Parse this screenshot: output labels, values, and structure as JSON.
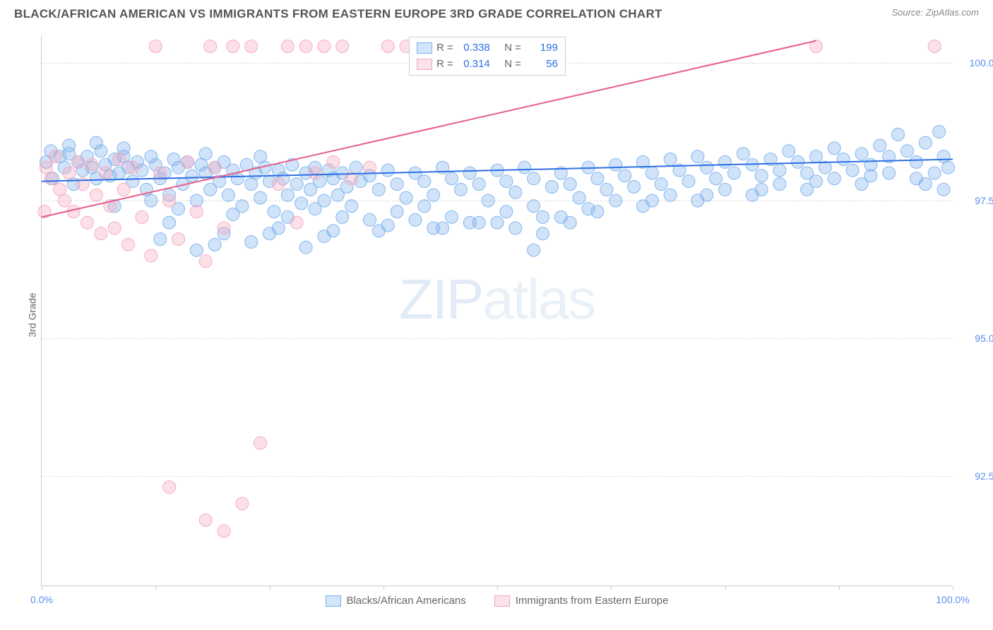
{
  "title": "BLACK/AFRICAN AMERICAN VS IMMIGRANTS FROM EASTERN EUROPE 3RD GRADE CORRELATION CHART",
  "source_prefix": "Source: ",
  "source_link": "ZipAtlas.com",
  "y_axis_label": "3rd Grade",
  "watermark_bold": "ZIP",
  "watermark_thin": "atlas",
  "chart": {
    "type": "scatter-with-regression",
    "xlim": [
      0,
      100
    ],
    "ylim": [
      90.5,
      100.5
    ],
    "y_ticks": [
      92.5,
      95.0,
      97.5,
      100.0
    ],
    "y_tick_labels": [
      "92.5%",
      "95.0%",
      "97.5%",
      "100.0%"
    ],
    "x_ticks": [
      0,
      12.5,
      25,
      37.5,
      50,
      62.5,
      75,
      87.5,
      100
    ],
    "x_tick_labels": {
      "0": "0.0%",
      "100": "100.0%"
    },
    "background_color": "#ffffff",
    "grid_color": "#dddddd",
    "axis_color": "#cccccc",
    "marker_radius": 9,
    "marker_fill_opacity": 0.35,
    "marker_stroke_opacity": 0.9,
    "line_width": 2,
    "series": [
      {
        "name": "Blacks/African Americans",
        "color": "#7ab0ec",
        "line_color": "#2d6fe4",
        "R": "0.338",
        "N": "199",
        "trend": {
          "x1": 0,
          "y1": 97.85,
          "x2": 100,
          "y2": 98.25
        },
        "points": [
          [
            0.5,
            98.2
          ],
          [
            1,
            98.4
          ],
          [
            1.2,
            97.9
          ],
          [
            2,
            98.3
          ],
          [
            2.5,
            98.1
          ],
          [
            3,
            98.35
          ],
          [
            3.5,
            97.8
          ],
          [
            4,
            98.2
          ],
          [
            4.5,
            98.05
          ],
          [
            5,
            98.3
          ],
          [
            5.5,
            98.1
          ],
          [
            6,
            97.9
          ],
          [
            6.5,
            98.4
          ],
          [
            7,
            98.15
          ],
          [
            7.5,
            97.95
          ],
          [
            8,
            98.25
          ],
          [
            8.5,
            98.0
          ],
          [
            9,
            98.3
          ],
          [
            9.5,
            98.1
          ],
          [
            10,
            97.85
          ],
          [
            10.5,
            98.2
          ],
          [
            11,
            98.05
          ],
          [
            11.5,
            97.7
          ],
          [
            12,
            98.3
          ],
          [
            12.5,
            98.15
          ],
          [
            13,
            97.9
          ],
          [
            13.5,
            98.0
          ],
          [
            14,
            97.6
          ],
          [
            14.5,
            98.25
          ],
          [
            15,
            98.1
          ],
          [
            15.5,
            97.8
          ],
          [
            16,
            98.2
          ],
          [
            16.5,
            97.95
          ],
          [
            17,
            97.5
          ],
          [
            17.5,
            98.15
          ],
          [
            18,
            98.0
          ],
          [
            18.5,
            97.7
          ],
          [
            19,
            98.1
          ],
          [
            19.5,
            97.85
          ],
          [
            20,
            98.2
          ],
          [
            20.5,
            97.6
          ],
          [
            21,
            98.05
          ],
          [
            21.5,
            97.9
          ],
          [
            22,
            97.4
          ],
          [
            22.5,
            98.15
          ],
          [
            23,
            97.8
          ],
          [
            23.5,
            98.0
          ],
          [
            24,
            97.55
          ],
          [
            24.5,
            98.1
          ],
          [
            25,
            97.85
          ],
          [
            25.5,
            97.3
          ],
          [
            26,
            98.05
          ],
          [
            26.5,
            97.9
          ],
          [
            27,
            97.6
          ],
          [
            27.5,
            98.15
          ],
          [
            28,
            97.8
          ],
          [
            28.5,
            97.45
          ],
          [
            29,
            98.0
          ],
          [
            29.5,
            97.7
          ],
          [
            30,
            98.1
          ],
          [
            30.5,
            97.85
          ],
          [
            31,
            97.5
          ],
          [
            31.5,
            98.05
          ],
          [
            32,
            97.9
          ],
          [
            32.5,
            97.6
          ],
          [
            33,
            98.0
          ],
          [
            33.5,
            97.75
          ],
          [
            34,
            97.4
          ],
          [
            34.5,
            98.1
          ],
          [
            35,
            97.85
          ],
          [
            36,
            97.95
          ],
          [
            37,
            97.7
          ],
          [
            38,
            98.05
          ],
          [
            39,
            97.8
          ],
          [
            40,
            97.55
          ],
          [
            41,
            98.0
          ],
          [
            42,
            97.85
          ],
          [
            43,
            97.6
          ],
          [
            44,
            98.1
          ],
          [
            45,
            97.9
          ],
          [
            46,
            97.7
          ],
          [
            47,
            98.0
          ],
          [
            48,
            97.8
          ],
          [
            49,
            97.5
          ],
          [
            50,
            98.05
          ],
          [
            51,
            97.85
          ],
          [
            52,
            97.65
          ],
          [
            53,
            98.1
          ],
          [
            54,
            97.9
          ],
          [
            55,
            96.9
          ],
          [
            56,
            97.75
          ],
          [
            57,
            98.0
          ],
          [
            58,
            97.8
          ],
          [
            59,
            97.55
          ],
          [
            60,
            98.1
          ],
          [
            61,
            97.9
          ],
          [
            62,
            97.7
          ],
          [
            63,
            98.15
          ],
          [
            64,
            97.95
          ],
          [
            65,
            97.75
          ],
          [
            66,
            98.2
          ],
          [
            67,
            98.0
          ],
          [
            68,
            97.8
          ],
          [
            69,
            98.25
          ],
          [
            70,
            98.05
          ],
          [
            71,
            97.85
          ],
          [
            72,
            98.3
          ],
          [
            73,
            98.1
          ],
          [
            74,
            97.9
          ],
          [
            75,
            98.2
          ],
          [
            76,
            98.0
          ],
          [
            77,
            98.35
          ],
          [
            78,
            98.15
          ],
          [
            79,
            97.95
          ],
          [
            80,
            98.25
          ],
          [
            81,
            98.05
          ],
          [
            82,
            98.4
          ],
          [
            83,
            98.2
          ],
          [
            84,
            98.0
          ],
          [
            85,
            98.3
          ],
          [
            86,
            98.1
          ],
          [
            87,
            98.45
          ],
          [
            88,
            98.25
          ],
          [
            89,
            98.05
          ],
          [
            90,
            98.35
          ],
          [
            91,
            98.15
          ],
          [
            92,
            98.5
          ],
          [
            93,
            98.3
          ],
          [
            94,
            98.7
          ],
          [
            95,
            98.4
          ],
          [
            96,
            98.2
          ],
          [
            97,
            98.55
          ],
          [
            98,
            98.0
          ],
          [
            98.5,
            98.75
          ],
          [
            99,
            98.3
          ],
          [
            99.5,
            98.1
          ],
          [
            3,
            98.5
          ],
          [
            6,
            98.55
          ],
          [
            9,
            98.45
          ],
          [
            12,
            97.5
          ],
          [
            15,
            97.35
          ],
          [
            18,
            98.35
          ],
          [
            21,
            97.25
          ],
          [
            24,
            98.3
          ],
          [
            27,
            97.2
          ],
          [
            30,
            97.35
          ],
          [
            33,
            97.2
          ],
          [
            36,
            97.15
          ],
          [
            39,
            97.3
          ],
          [
            42,
            97.4
          ],
          [
            45,
            97.2
          ],
          [
            48,
            97.1
          ],
          [
            51,
            97.3
          ],
          [
            54,
            97.4
          ],
          [
            57,
            97.2
          ],
          [
            60,
            97.35
          ],
          [
            63,
            97.5
          ],
          [
            66,
            97.4
          ],
          [
            69,
            97.6
          ],
          [
            72,
            97.5
          ],
          [
            75,
            97.7
          ],
          [
            78,
            97.6
          ],
          [
            81,
            97.8
          ],
          [
            84,
            97.7
          ],
          [
            87,
            97.9
          ],
          [
            90,
            97.8
          ],
          [
            93,
            98.0
          ],
          [
            96,
            97.9
          ],
          [
            99,
            97.7
          ],
          [
            8,
            97.4
          ],
          [
            14,
            97.1
          ],
          [
            20,
            96.9
          ],
          [
            26,
            97.0
          ],
          [
            32,
            96.95
          ],
          [
            38,
            97.05
          ],
          [
            44,
            97.0
          ],
          [
            50,
            97.1
          ],
          [
            13,
            96.8
          ],
          [
            19,
            96.7
          ],
          [
            25,
            96.9
          ],
          [
            31,
            96.85
          ],
          [
            37,
            96.95
          ],
          [
            43,
            97.0
          ],
          [
            52,
            97.0
          ],
          [
            58,
            97.1
          ],
          [
            17,
            96.6
          ],
          [
            23,
            96.75
          ],
          [
            29,
            96.65
          ],
          [
            41,
            97.15
          ],
          [
            47,
            97.1
          ],
          [
            55,
            97.2
          ],
          [
            61,
            97.3
          ],
          [
            67,
            97.5
          ],
          [
            73,
            97.6
          ],
          [
            79,
            97.7
          ],
          [
            85,
            97.85
          ],
          [
            91,
            97.95
          ],
          [
            97,
            97.8
          ],
          [
            54,
            96.6
          ]
        ]
      },
      {
        "name": "Immigrants from Eastern Europe",
        "color": "#f4a6bd",
        "line_color": "#e85d8a",
        "R": "0.314",
        "N": "56",
        "trend": {
          "x1": 0,
          "y1": 97.2,
          "x2": 85,
          "y2": 100.4
        },
        "points": [
          [
            0.5,
            98.1
          ],
          [
            1,
            97.9
          ],
          [
            1.5,
            98.3
          ],
          [
            2,
            97.7
          ],
          [
            2.5,
            97.5
          ],
          [
            3,
            98.0
          ],
          [
            3.5,
            97.3
          ],
          [
            4,
            98.2
          ],
          [
            4.5,
            97.8
          ],
          [
            5,
            97.1
          ],
          [
            5.5,
            98.15
          ],
          [
            6,
            97.6
          ],
          [
            6.5,
            96.9
          ],
          [
            7,
            98.0
          ],
          [
            7.5,
            97.4
          ],
          [
            8,
            97.0
          ],
          [
            8.5,
            98.25
          ],
          [
            9,
            97.7
          ],
          [
            9.5,
            96.7
          ],
          [
            10,
            98.1
          ],
          [
            11,
            97.2
          ],
          [
            12,
            96.5
          ],
          [
            13,
            98.0
          ],
          [
            14,
            97.5
          ],
          [
            15,
            96.8
          ],
          [
            16,
            98.2
          ],
          [
            17,
            97.3
          ],
          [
            18,
            96.4
          ],
          [
            19,
            98.1
          ],
          [
            20,
            97.0
          ],
          [
            12.5,
            100.3
          ],
          [
            18.5,
            100.3
          ],
          [
            21,
            100.3
          ],
          [
            23,
            100.3
          ],
          [
            27,
            100.3
          ],
          [
            29,
            100.3
          ],
          [
            31,
            100.3
          ],
          [
            33,
            100.3
          ],
          [
            38,
            100.3
          ],
          [
            40,
            100.3
          ],
          [
            45,
            100.3
          ],
          [
            55,
            100.3
          ],
          [
            85,
            100.3
          ],
          [
            98,
            100.3
          ],
          [
            0.3,
            97.3
          ],
          [
            14,
            92.3
          ],
          [
            18,
            91.7
          ],
          [
            20,
            91.5
          ],
          [
            22,
            92.0
          ],
          [
            24,
            93.1
          ],
          [
            26,
            97.8
          ],
          [
            28,
            97.1
          ],
          [
            30,
            98.0
          ],
          [
            32,
            98.2
          ],
          [
            34,
            97.9
          ],
          [
            36,
            98.1
          ]
        ]
      }
    ]
  },
  "legend_box": {
    "r_label": "R =",
    "n_label": "N ="
  },
  "bottom_legend": [
    {
      "label": "Blacks/African Americans",
      "color": "#7ab0ec"
    },
    {
      "label": "Immigrants from Eastern Europe",
      "color": "#f4a6bd"
    }
  ]
}
